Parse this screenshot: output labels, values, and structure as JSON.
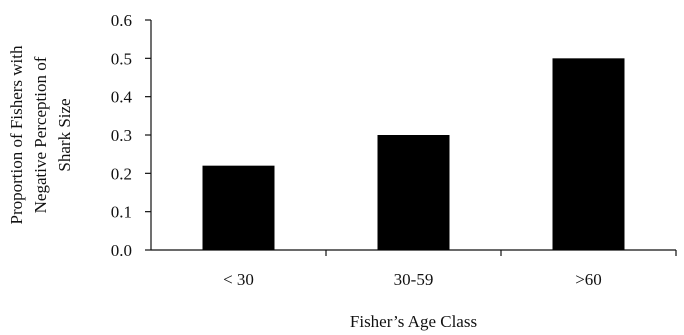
{
  "chart_data": {
    "type": "bar",
    "categories": [
      "< 30",
      "30-59",
      ">60"
    ],
    "values": [
      0.22,
      0.3,
      0.5
    ],
    "title": "",
    "xlabel": "Fisher’s Age Class",
    "ylabel_lines": [
      "Proportion of Fishers with",
      "Negative  Perception of",
      "Shark Size"
    ],
    "ylim": [
      0.0,
      0.6
    ],
    "yticks": [
      "0.0",
      "0.1",
      "0.2",
      "0.3",
      "0.4",
      "0.5",
      "0.6"
    ],
    "grid": false,
    "legend": "none",
    "bar_color": "#000000"
  }
}
